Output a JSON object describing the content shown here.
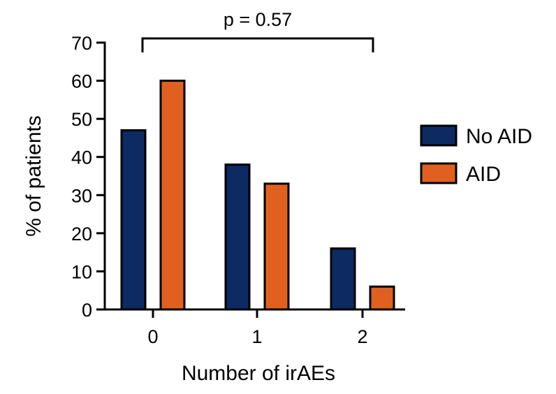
{
  "chart_data": {
    "type": "bar",
    "categories": [
      "0",
      "1",
      "2"
    ],
    "series": [
      {
        "name": "No AID",
        "values": [
          47,
          38,
          16
        ],
        "color": "#0d2a63"
      },
      {
        "name": "AID",
        "values": [
          60,
          33,
          6
        ],
        "color": "#e0611f"
      }
    ],
    "xlabel": "Number of irAEs",
    "ylabel": "% of patients",
    "ylim": [
      0,
      70
    ],
    "yticks": [
      0,
      10,
      20,
      30,
      40,
      50,
      60,
      70
    ],
    "grid": false,
    "legend_position": "right",
    "annotation": {
      "text": "p = 0.57",
      "from_category": "0",
      "to_category": "2"
    }
  }
}
